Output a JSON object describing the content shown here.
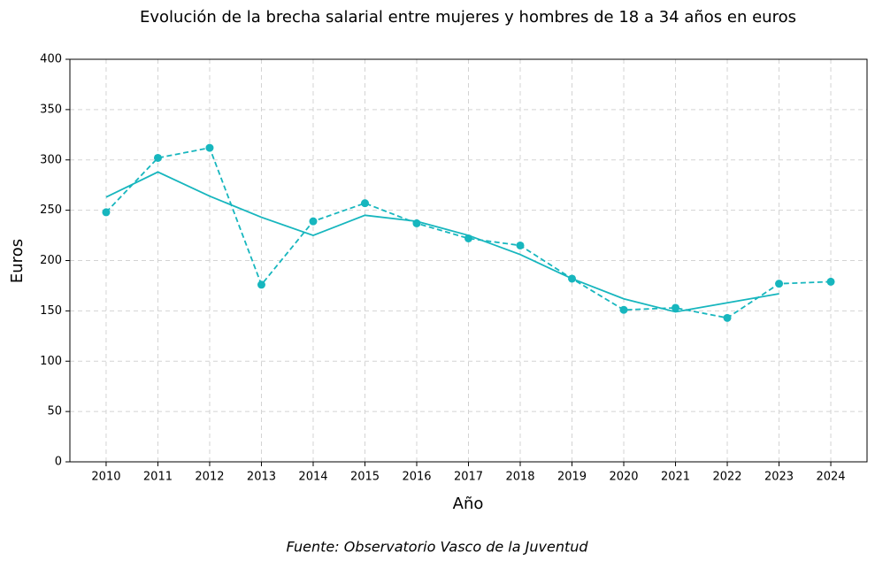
{
  "chart_data": {
    "type": "line",
    "title": "Evolución de la brecha salarial entre mujeres y hombres de 18 a 34 años en euros",
    "x_label": "Año",
    "y_label": "Euros",
    "source": "Fuente: Observatorio Vasco de la Juventud",
    "x": [
      2010,
      2011,
      2012,
      2013,
      2014,
      2015,
      2016,
      2017,
      2018,
      2019,
      2020,
      2021,
      2022,
      2023,
      2024
    ],
    "series": [
      {
        "color": "#17b6be",
        "linestyle": "dashed",
        "marker": true,
        "values": [
          248,
          302,
          312,
          176,
          239,
          257,
          237,
          222,
          215,
          182,
          151,
          153,
          143,
          177,
          179
        ]
      },
      {
        "color": "#17b6be",
        "linestyle": "solid",
        "marker": false,
        "values": [
          263,
          288,
          264,
          243,
          225,
          245,
          239,
          225,
          206,
          182,
          162,
          149,
          158,
          167,
          null
        ]
      }
    ],
    "xlim": [
      2009.3,
      2024.7
    ],
    "xticks": [
      2010,
      2011,
      2012,
      2013,
      2014,
      2015,
      2016,
      2017,
      2018,
      2019,
      2020,
      2021,
      2022,
      2023,
      2024
    ],
    "ylim": [
      0,
      400
    ],
    "yticks": [
      0,
      50,
      100,
      150,
      200,
      250,
      300,
      350,
      400
    ],
    "grid": true
  }
}
